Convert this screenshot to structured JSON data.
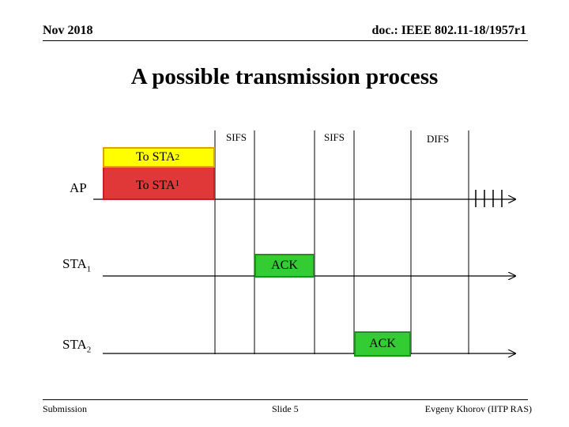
{
  "header": {
    "date": "Nov 2018",
    "doc_id": "doc.: IEEE 802.11-18/1957r1"
  },
  "title": "A possible transmission process",
  "intervals": {
    "sifs_1": "SIFS",
    "sifs_2": "SIFS",
    "difs": "DIFS"
  },
  "rows": {
    "ap": "AP",
    "sta1_base": "STA",
    "sta1_sub": "1",
    "sta2_base": "STA",
    "sta2_sub": "2"
  },
  "frames": {
    "to_sta2_base": "To STA",
    "to_sta2_sub": "2",
    "to_sta1_base": "To STA",
    "to_sta1_sub": "1",
    "ack1": "ACK",
    "ack2": "ACK"
  },
  "footer": {
    "left": "Submission",
    "center": "Slide 5",
    "right": "Evgeny Khorov (IITP RAS)"
  },
  "colors": {
    "yellow_frame": "#ffff00",
    "red_frame": "#e03838",
    "ack_frame": "#33cc33"
  }
}
